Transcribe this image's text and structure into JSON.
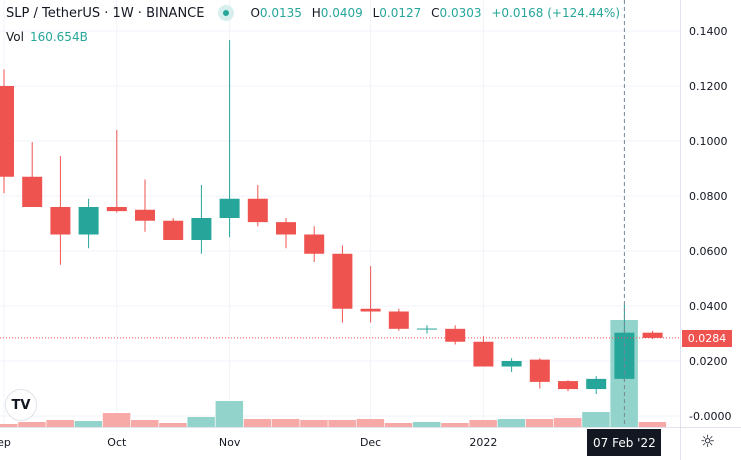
{
  "header": {
    "symbol": "SLP / TetherUS · 1W · BINANCE",
    "open_label": "O",
    "open": "0.0135",
    "high_label": "H",
    "high": "0.0409",
    "low_label": "L",
    "low": "0.0127",
    "close_label": "C",
    "close": "0.0303",
    "change": "+0.0168 (+124.44%)"
  },
  "volume_legend": {
    "label": "Vol",
    "value": "160.654B"
  },
  "logo_text": "TV",
  "crosshair_date": "07 Feb '22",
  "last_price": "0.0284",
  "colors": {
    "up": "#26a69a",
    "down": "#ef5350",
    "vol_up": "#92d4cc",
    "vol_down": "#f7a9a7"
  },
  "chart_data": {
    "type": "candlestick",
    "title": "SLP / TetherUS · 1W · BINANCE",
    "ylim": [
      -0.004,
      0.145
    ],
    "y_ticks": [
      "0.1400",
      "0.1200",
      "0.1000",
      "0.0800",
      "0.0600",
      "0.0400",
      "0.0200",
      "-0.0000"
    ],
    "y_tick_values": [
      0.14,
      0.12,
      0.1,
      0.08,
      0.06,
      0.04,
      0.02,
      0
    ],
    "x_ticks": [
      {
        "label": "ep",
        "index": 0
      },
      {
        "label": "Oct",
        "index": 4
      },
      {
        "label": "Nov",
        "index": 8
      },
      {
        "label": "Dec",
        "index": 13
      },
      {
        "label": "2022",
        "index": 17
      }
    ],
    "candles": [
      {
        "o": 0.12,
        "h": 0.126,
        "l": 0.081,
        "c": 0.087,
        "v": 4.5
      },
      {
        "o": 0.087,
        "h": 0.0996,
        "l": 0.076,
        "c": 0.076,
        "v": 7.5
      },
      {
        "o": 0.076,
        "h": 0.0945,
        "l": 0.055,
        "c": 0.066,
        "v": 10.5
      },
      {
        "o": 0.066,
        "h": 0.079,
        "l": 0.061,
        "c": 0.076,
        "v": 9
      },
      {
        "o": 0.076,
        "h": 0.104,
        "l": 0.074,
        "c": 0.0745,
        "v": 21
      },
      {
        "o": 0.075,
        "h": 0.086,
        "l": 0.067,
        "c": 0.071,
        "v": 10.5
      },
      {
        "o": 0.071,
        "h": 0.072,
        "l": 0.064,
        "c": 0.064,
        "v": 6
      },
      {
        "o": 0.064,
        "h": 0.084,
        "l": 0.059,
        "c": 0.072,
        "v": 15
      },
      {
        "o": 0.072,
        "h": 0.1367,
        "l": 0.065,
        "c": 0.079,
        "v": 39
      },
      {
        "o": 0.079,
        "h": 0.084,
        "l": 0.069,
        "c": 0.0705,
        "v": 12
      },
      {
        "o": 0.0705,
        "h": 0.072,
        "l": 0.061,
        "c": 0.066,
        "v": 12
      },
      {
        "o": 0.066,
        "h": 0.069,
        "l": 0.056,
        "c": 0.059,
        "v": 10.5
      },
      {
        "o": 0.059,
        "h": 0.062,
        "l": 0.034,
        "c": 0.039,
        "v": 10.5
      },
      {
        "o": 0.039,
        "h": 0.0545,
        "l": 0.034,
        "c": 0.038,
        "v": 12
      },
      {
        "o": 0.038,
        "h": 0.039,
        "l": 0.031,
        "c": 0.0317,
        "v": 6
      },
      {
        "o": 0.0317,
        "h": 0.033,
        "l": 0.03,
        "c": 0.0318,
        "v": 7.5
      },
      {
        "o": 0.0317,
        "h": 0.033,
        "l": 0.026,
        "c": 0.027,
        "v": 6
      },
      {
        "o": 0.027,
        "h": 0.029,
        "l": 0.018,
        "c": 0.018,
        "v": 10.5
      },
      {
        "o": 0.018,
        "h": 0.021,
        "l": 0.016,
        "c": 0.02,
        "v": 12
      },
      {
        "o": 0.0205,
        "h": 0.021,
        "l": 0.01,
        "c": 0.0124,
        "v": 12
      },
      {
        "o": 0.0127,
        "h": 0.013,
        "l": 0.009,
        "c": 0.0098,
        "v": 13.5
      },
      {
        "o": 0.0098,
        "h": 0.0145,
        "l": 0.008,
        "c": 0.0135,
        "v": 22.5
      },
      {
        "o": 0.0135,
        "h": 0.0409,
        "l": 0.0127,
        "c": 0.0303,
        "v": 160.654
      },
      {
        "o": 0.0303,
        "h": 0.031,
        "l": 0.028,
        "c": 0.0284,
        "v": 7.5
      }
    ],
    "volume_unit": "B"
  }
}
